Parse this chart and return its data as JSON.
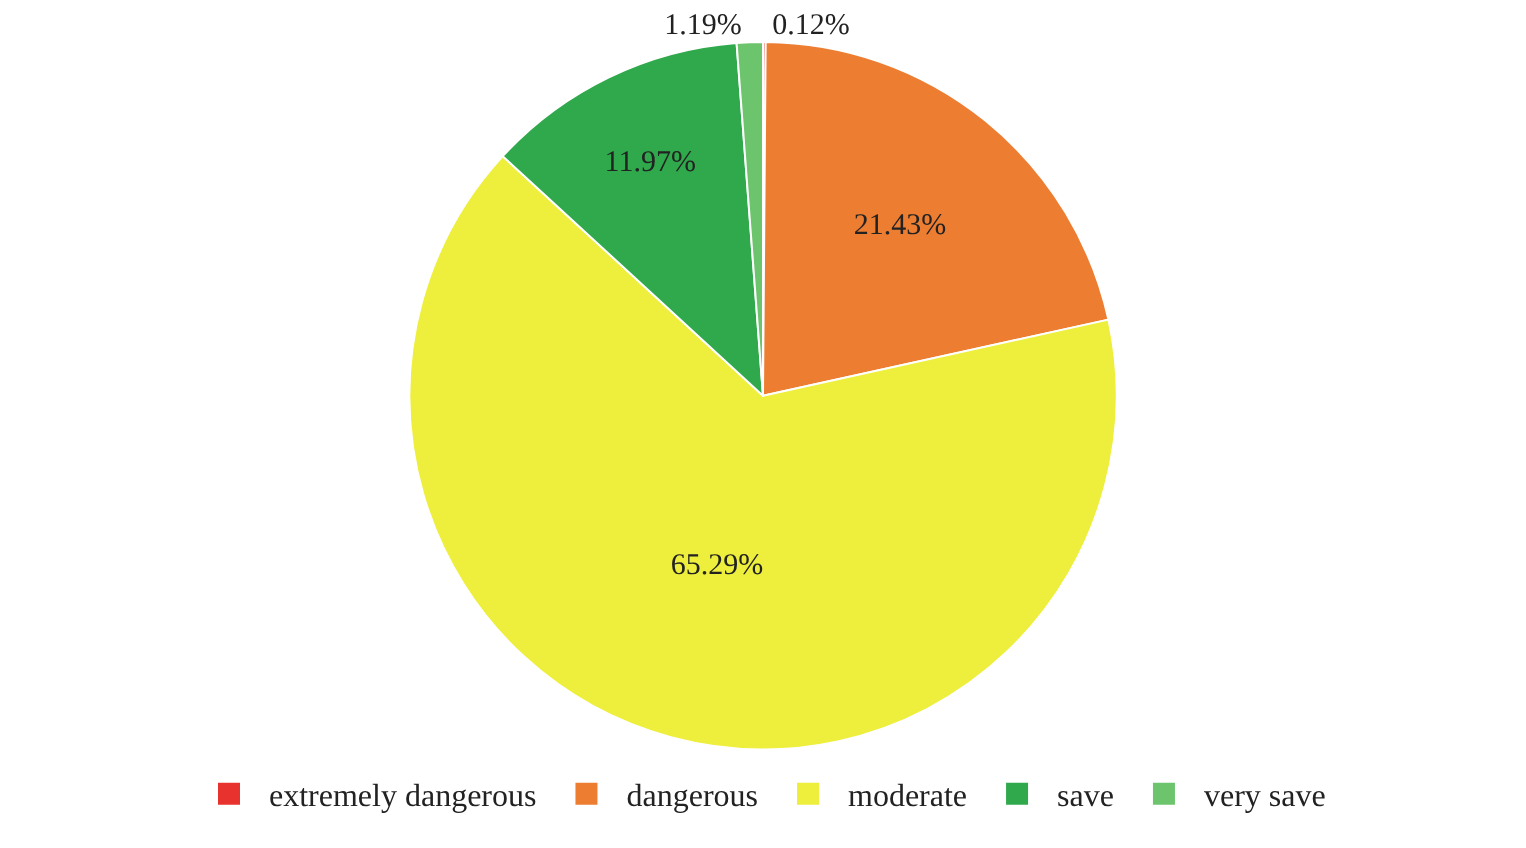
{
  "chart_data": {
    "type": "pie",
    "categories": [
      "extremely dangerous",
      "dangerous",
      "moderate",
      "save",
      "very save"
    ],
    "values": [
      0.12,
      21.43,
      65.29,
      11.97,
      1.19
    ],
    "value_labels": [
      "0.12%",
      "21.43%",
      "65.29%",
      "11.97%",
      "1.19%"
    ],
    "colors": [
      "#e8322e",
      "#ed7d31",
      "#eeee3c",
      "#30a84c",
      "#6cc46c"
    ],
    "legend": "bottom"
  }
}
